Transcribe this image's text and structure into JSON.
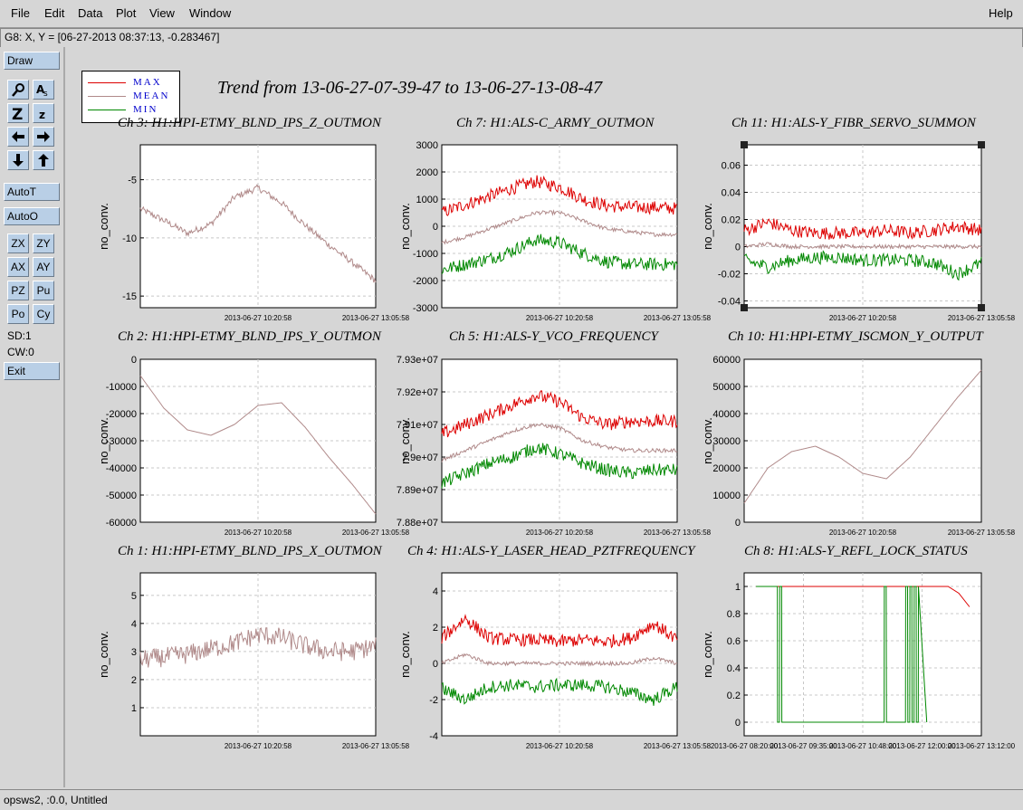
{
  "menu": {
    "file": "File",
    "edit": "Edit",
    "data": "Data",
    "plot": "Plot",
    "view": "View",
    "window": "Window",
    "help": "Help"
  },
  "coord": "G8: X, Y = [06-27-2013 08:37:13, -0.283467]",
  "sidebar": {
    "draw": "Draw",
    "auto_t": "AutoT",
    "auto_o": "AutoO",
    "zx": "ZX",
    "zy": "ZY",
    "ax": "AX",
    "ay": "AY",
    "pz": "PZ",
    "pu": "Pu",
    "po": "Po",
    "cy": "Cy",
    "sd": "SD:1",
    "cw": "CW:0",
    "exit": "Exit"
  },
  "status": "opsws2, :0.0, Untitled",
  "title": "Trend from 13-06-27-07-39-47 to 13-06-27-13-08-47",
  "legend": [
    {
      "label": "MAX",
      "color": "#dd0000"
    },
    {
      "label": "MEAN",
      "color": "#b08a8a"
    },
    {
      "label": "MIN",
      "color": "#008800"
    }
  ],
  "chart_data": [
    {
      "type": "line",
      "title": "Ch 3: H1:HPI-ETMY_BLND_IPS_Z_OUTMON",
      "ylabel": "no_conv.",
      "ylim": [
        -16,
        -2
      ],
      "yticks": [
        -5,
        -10,
        -15
      ],
      "xticks": [
        "2013-06-27 10:20:58",
        "2013-06-27 13:05:58"
      ],
      "series": [
        {
          "name": "MEAN",
          "x": [
            0,
            0.1,
            0.2,
            0.3,
            0.4,
            0.5,
            0.6,
            0.7,
            0.8,
            0.9,
            1.0
          ],
          "y": [
            -7.5,
            -8.5,
            -9.6,
            -8.8,
            -6.5,
            -5.7,
            -7.0,
            -8.9,
            -10.6,
            -12.1,
            -13.7
          ]
        }
      ]
    },
    {
      "type": "line",
      "title": "Ch 7: H1:ALS-C_ARMY_OUTMON",
      "ylabel": "no_conv.",
      "ylim": [
        -3000,
        3000
      ],
      "yticks": [
        3000,
        2000,
        1000,
        0,
        -1000,
        -2000,
        -3000
      ],
      "xticks": [
        "2013-06-27 10:20:58",
        "2013-06-27 13:05:58"
      ],
      "series": [
        {
          "name": "MAX",
          "x": [
            0,
            0.1,
            0.2,
            0.3,
            0.4,
            0.5,
            0.6,
            0.7,
            0.8,
            0.9,
            1.0
          ],
          "y": [
            500,
            800,
            1100,
            1400,
            1650,
            1450,
            1000,
            750,
            700,
            700,
            650
          ]
        },
        {
          "name": "MEAN",
          "x": [
            0,
            0.1,
            0.2,
            0.3,
            0.4,
            0.5,
            0.6,
            0.7,
            0.8,
            0.9,
            1.0
          ],
          "y": [
            -600,
            -400,
            -100,
            200,
            500,
            500,
            200,
            -100,
            -200,
            -300,
            -300
          ]
        },
        {
          "name": "MIN",
          "x": [
            0,
            0.1,
            0.2,
            0.3,
            0.4,
            0.5,
            0.6,
            0.7,
            0.8,
            0.9,
            1.0
          ],
          "y": [
            -1600,
            -1400,
            -1200,
            -900,
            -500,
            -600,
            -1000,
            -1300,
            -1400,
            -1400,
            -1400
          ]
        }
      ]
    },
    {
      "type": "line",
      "title": "Ch 11: H1:ALS-Y_FIBR_SERVO_SUMMON",
      "ylabel": "no_conv.",
      "ylim": [
        -0.045,
        0.075
      ],
      "yticks": [
        0.06,
        0.04,
        0.02,
        0,
        -0.02,
        -0.04
      ],
      "xticks": [
        "2013-06-27 10:20:58",
        "2013-06-27 13:05:58"
      ],
      "series": [
        {
          "name": "MAX",
          "x": [
            0,
            0.1,
            0.2,
            0.3,
            0.4,
            0.5,
            0.6,
            0.7,
            0.8,
            0.9,
            1.0
          ],
          "y": [
            0.012,
            0.018,
            0.012,
            0.01,
            0.01,
            0.01,
            0.012,
            0.01,
            0.012,
            0.015,
            0.012
          ]
        },
        {
          "name": "MEAN",
          "x": [
            0,
            0.1,
            0.2,
            0.3,
            0.4,
            0.5,
            0.6,
            0.7,
            0.8,
            0.9,
            1.0
          ],
          "y": [
            0.0,
            0.002,
            0.0,
            0.0,
            0.0,
            0.0,
            0.0,
            0.0,
            0.0,
            0.0,
            0.0
          ]
        },
        {
          "name": "MIN",
          "x": [
            0,
            0.1,
            0.2,
            0.3,
            0.4,
            0.5,
            0.6,
            0.7,
            0.8,
            0.9,
            1.0
          ],
          "y": [
            -0.01,
            -0.015,
            -0.01,
            -0.008,
            -0.008,
            -0.01,
            -0.01,
            -0.01,
            -0.012,
            -0.02,
            -0.012
          ]
        }
      ]
    },
    {
      "type": "line",
      "title": "Ch 2: H1:HPI-ETMY_BLND_IPS_Y_OUTMON",
      "ylabel": "no_conv.",
      "ylim": [
        -60000,
        0
      ],
      "yticks": [
        0,
        -10000,
        -20000,
        -30000,
        -40000,
        -50000,
        -60000
      ],
      "xticks": [
        "2013-06-27 10:20:58",
        "2013-06-27 13:05:58"
      ],
      "series": [
        {
          "name": "MEAN",
          "x": [
            0,
            0.1,
            0.2,
            0.3,
            0.4,
            0.5,
            0.6,
            0.7,
            0.8,
            0.9,
            1.0
          ],
          "y": [
            -6000,
            -18000,
            -26000,
            -28000,
            -24000,
            -17000,
            -16000,
            -25000,
            -36000,
            -46000,
            -57000
          ]
        }
      ]
    },
    {
      "type": "line",
      "title": "Ch 5: H1:ALS-Y_VCO_FREQUENCY",
      "ylabel": "no_conv.",
      "ylim": [
        78800000,
        79300000
      ],
      "yticks": [
        "7.93e+07",
        "7.92e+07",
        "7.91e+07",
        "7.9e+07",
        "7.89e+07",
        "7.88e+07"
      ],
      "xticks": [
        "2013-06-27 10:20:58",
        "2013-06-27 13:05:58"
      ],
      "series": [
        {
          "name": "MAX",
          "x": [
            0,
            0.1,
            0.2,
            0.3,
            0.4,
            0.5,
            0.6,
            0.7,
            0.8,
            0.9,
            1.0
          ],
          "y": [
            79070000,
            79100000,
            79130000,
            79160000,
            79190000,
            79170000,
            79120000,
            79100000,
            79110000,
            79110000,
            79110000
          ]
        },
        {
          "name": "MEAN",
          "x": [
            0,
            0.1,
            0.2,
            0.3,
            0.4,
            0.5,
            0.6,
            0.7,
            0.8,
            0.9,
            1.0
          ],
          "y": [
            78990000,
            79020000,
            79050000,
            79080000,
            79100000,
            79090000,
            79050000,
            79030000,
            79020000,
            79020000,
            79020000
          ]
        },
        {
          "name": "MIN",
          "x": [
            0,
            0.1,
            0.2,
            0.3,
            0.4,
            0.5,
            0.6,
            0.7,
            0.8,
            0.9,
            1.0
          ],
          "y": [
            78920000,
            78950000,
            78980000,
            79000000,
            79030000,
            79010000,
            78980000,
            78960000,
            78950000,
            78960000,
            78960000
          ]
        }
      ]
    },
    {
      "type": "line",
      "title": "Ch 10: H1:HPI-ETMY_ISCMON_Y_OUTPUT",
      "ylabel": "no_conv.",
      "ylim": [
        0,
        60000
      ],
      "yticks": [
        60000,
        50000,
        40000,
        30000,
        20000,
        10000,
        0
      ],
      "xticks": [
        "2013-06-27 10:20:58",
        "2013-06-27 13:05:58"
      ],
      "series": [
        {
          "name": "MEAN",
          "x": [
            0,
            0.1,
            0.2,
            0.3,
            0.4,
            0.5,
            0.6,
            0.7,
            0.8,
            0.9,
            1.0
          ],
          "y": [
            7000,
            20000,
            26000,
            28000,
            24000,
            18000,
            16000,
            24000,
            35000,
            46000,
            56000
          ]
        }
      ]
    },
    {
      "type": "line",
      "title": "Ch 1: H1:HPI-ETMY_BLND_IPS_X_OUTMON",
      "ylabel": "no_conv.",
      "ylim": [
        0,
        5.8
      ],
      "yticks": [
        5,
        4,
        3,
        2,
        1
      ],
      "xticks": [
        "2013-06-27 10:20:58",
        "2013-06-27 13:05:58"
      ],
      "series": [
        {
          "name": "MEAN",
          "x": [
            0,
            0.1,
            0.2,
            0.3,
            0.4,
            0.5,
            0.6,
            0.7,
            0.8,
            0.9,
            1.0
          ],
          "y": [
            2.7,
            2.8,
            2.9,
            3.1,
            3.3,
            3.6,
            3.5,
            3.2,
            3.0,
            3.0,
            3.2
          ]
        }
      ]
    },
    {
      "type": "line",
      "title": "Ch 4: H1:ALS-Y_LASER_HEAD_PZTFREQUENCY",
      "ylabel": "no_conv.",
      "ylim": [
        -4,
        5
      ],
      "yticks": [
        4,
        2,
        0,
        -2,
        -4
      ],
      "xticks": [
        "2013-06-27 10:20:58",
        "2013-06-27 13:05:58"
      ],
      "series": [
        {
          "name": "MAX",
          "x": [
            0,
            0.1,
            0.2,
            0.3,
            0.4,
            0.5,
            0.6,
            0.7,
            0.8,
            0.9,
            1.0
          ],
          "y": [
            1.4,
            2.5,
            1.4,
            1.3,
            1.3,
            1.2,
            1.3,
            1.2,
            1.4,
            2.2,
            1.3
          ]
        },
        {
          "name": "MEAN",
          "x": [
            0,
            0.1,
            0.2,
            0.3,
            0.4,
            0.5,
            0.6,
            0.7,
            0.8,
            0.9,
            1.0
          ],
          "y": [
            0.0,
            0.5,
            0.0,
            0.0,
            0.0,
            0.0,
            0.0,
            0.0,
            0.0,
            0.3,
            0.0
          ]
        },
        {
          "name": "MIN",
          "x": [
            0,
            0.1,
            0.2,
            0.3,
            0.4,
            0.5,
            0.6,
            0.7,
            0.8,
            0.9,
            1.0
          ],
          "y": [
            -1.4,
            -2.0,
            -1.3,
            -1.2,
            -1.3,
            -1.2,
            -1.2,
            -1.3,
            -1.6,
            -2.0,
            -1.3
          ]
        }
      ]
    },
    {
      "type": "line",
      "title": "Ch 8: H1:ALS-Y_REFL_LOCK_STATUS",
      "ylabel": "no_conv.",
      "ylim": [
        -0.1,
        1.1
      ],
      "yticks": [
        1,
        0.8,
        0.6,
        0.4,
        0.2,
        0
      ],
      "xticks": [
        "2013-06-27 08:20:00",
        "2013-06-27 09:35:00",
        "2013-06-27 10:48:00",
        "2013-06-27 12:00:00",
        "2013-06-27 13:12:00"
      ],
      "series": [
        {
          "name": "MAX",
          "x": [
            0,
            0.55,
            0.86,
            0.9,
            0.95,
            1.0
          ],
          "y": [
            1,
            1,
            1,
            1,
            0.95,
            0.85
          ]
        },
        {
          "name": "MIN",
          "x": [
            0,
            0.1,
            0.101,
            0.11,
            0.111,
            0.12,
            0.121,
            0.6,
            0.601,
            0.61,
            0.611,
            0.7,
            0.701,
            0.71,
            0.711,
            0.72,
            0.721,
            0.73,
            0.731,
            0.74,
            0.741,
            0.75,
            0.751,
            0.76,
            0.761,
            0.8
          ],
          "y": [
            1,
            1,
            0,
            0,
            1,
            1,
            0,
            0,
            1,
            1,
            0,
            0,
            1,
            1,
            0,
            0,
            1,
            1,
            0,
            0,
            1,
            1,
            0,
            0,
            1,
            0
          ]
        }
      ]
    }
  ]
}
